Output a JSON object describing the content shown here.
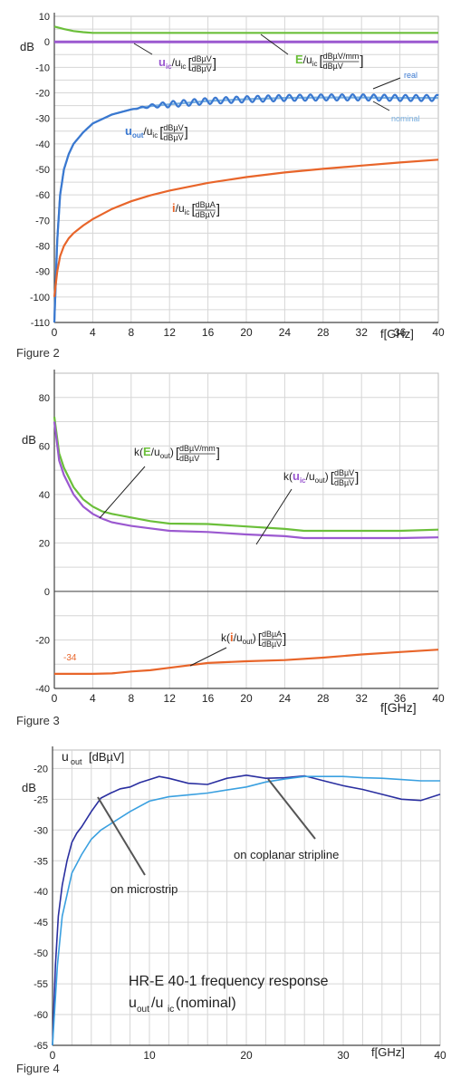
{
  "chart_data": [
    {
      "type": "line",
      "caption": "Figure 2",
      "ylabel": "dB",
      "xlabel": "f[GHz]",
      "xlim": [
        0,
        40
      ],
      "ylim": [
        -110,
        10
      ],
      "xticks": [
        0,
        4,
        8,
        12,
        16,
        20,
        24,
        28,
        32,
        36,
        40
      ],
      "yticks": [
        10,
        0,
        -10,
        -20,
        -30,
        -40,
        -50,
        -60,
        -70,
        -80,
        -90,
        -100,
        -110
      ],
      "grid": true,
      "series": [
        {
          "key": "E",
          "color": "#6bbf3a",
          "x": [
            0,
            0.5,
            1,
            2,
            3,
            4,
            8,
            12,
            20,
            30,
            40
          ],
          "y": [
            6,
            5.5,
            5,
            4.2,
            3.8,
            3.5,
            3.5,
            3.5,
            3.5,
            3.5,
            3.5
          ]
        },
        {
          "key": "uic",
          "color": "#9b59d0",
          "x": [
            0,
            40
          ],
          "y": [
            0,
            0
          ]
        },
        {
          "key": "uout_nominal",
          "color": "#7ab0e0",
          "x": [
            0,
            0.3,
            0.6,
            1,
            1.5,
            2,
            3,
            4,
            6,
            8,
            10,
            12,
            16,
            20,
            24,
            28,
            32,
            36,
            40
          ],
          "y": [
            -110,
            -78,
            -60,
            -50,
            -44,
            -40,
            -35.5,
            -32,
            -28.5,
            -26.5,
            -25.2,
            -24.5,
            -23.2,
            -22.5,
            -22,
            -21.8,
            -21.8,
            -22,
            -22
          ]
        },
        {
          "key": "uout_real",
          "color": "#3a78d0",
          "x": [
            0,
            0.3,
            0.6,
            1,
            1.5,
            2,
            3,
            4,
            6,
            8,
            10,
            12,
            16,
            20,
            24,
            28,
            32,
            36,
            40
          ],
          "y": [
            -110,
            -78,
            -60,
            -50,
            -44,
            -40,
            -35.5,
            -32,
            -28.5,
            -26.5,
            -25.2,
            -24.5,
            -23.2,
            -22.5,
            -22,
            -21.8,
            -21.8,
            -22,
            -22
          ],
          "ripple": 1.2
        },
        {
          "key": "i",
          "color": "#e8652a",
          "x": [
            0,
            0.3,
            0.6,
            1,
            1.5,
            2,
            3,
            4,
            6,
            8,
            10,
            12,
            16,
            20,
            24,
            28,
            32,
            36,
            40
          ],
          "y": [
            -100,
            -90,
            -84,
            -80,
            -77,
            -75,
            -72,
            -69.5,
            -65.5,
            -62.5,
            -60.2,
            -58.3,
            -55.3,
            -53,
            -51.2,
            -49.8,
            -48.5,
            -47.3,
            -46.2
          ]
        }
      ],
      "annotations": {
        "uic": {
          "main": "u",
          "sub": "ic",
          "den": "u",
          "densub": "ic",
          "frac_num": "dBµV",
          "frac_den": "dBµV"
        },
        "E": {
          "main": "E",
          "den": "u",
          "densub": "ic",
          "frac_num": "dBµV/mm",
          "frac_den": "dBµV"
        },
        "uout": {
          "main": "u",
          "sub": "out",
          "den": "u",
          "densub": "ic",
          "frac_num": "dBµV",
          "frac_den": "dBµV"
        },
        "i": {
          "main": "i",
          "den": "u",
          "densub": "ic",
          "frac_num": "dBµA",
          "frac_den": "dBµV"
        },
        "real": "real",
        "nominal": "nominal"
      }
    },
    {
      "type": "line",
      "caption": "Figure 3",
      "ylabel": "dB",
      "xlabel": "f[GHz]",
      "xlim": [
        0,
        40
      ],
      "ylim": [
        -40,
        90
      ],
      "xticks": [
        0,
        4,
        8,
        12,
        16,
        20,
        24,
        28,
        32,
        36,
        40
      ],
      "yticks": [
        80,
        60,
        40,
        20,
        0,
        -20,
        -40
      ],
      "grid": true,
      "series": [
        {
          "key": "kE",
          "color": "#6bbf3a",
          "x": [
            0,
            0.5,
            1,
            2,
            3,
            4,
            5,
            6,
            8,
            10,
            12,
            16,
            20,
            24,
            26,
            28,
            32,
            36,
            40
          ],
          "y": [
            72,
            57,
            51,
            43,
            38,
            35,
            33,
            32,
            30.5,
            29,
            28,
            27.8,
            26.8,
            25.8,
            25,
            25,
            25,
            25,
            25.5
          ]
        },
        {
          "key": "kuic",
          "color": "#9b59d0",
          "x": [
            0,
            0.5,
            1,
            2,
            3,
            4,
            5,
            6,
            8,
            10,
            12,
            16,
            20,
            24,
            26,
            28,
            32,
            36,
            40
          ],
          "y": [
            70,
            54,
            48,
            40,
            35,
            32,
            30,
            28.5,
            27,
            26,
            25,
            24.5,
            23.5,
            22.8,
            22,
            22,
            22,
            22,
            22.3
          ]
        },
        {
          "key": "ki",
          "color": "#e8652a",
          "x": [
            0,
            2,
            4,
            6,
            8,
            10,
            12,
            16,
            20,
            24,
            28,
            32,
            36,
            40
          ],
          "y": [
            -34,
            -34,
            -34,
            -33.8,
            -33,
            -32.5,
            -31.5,
            -29.5,
            -28.8,
            -28.3,
            -27.3,
            -26,
            -25,
            -24
          ]
        }
      ],
      "annotations": {
        "kE": {
          "pre": "k(",
          "main": "E",
          "den": "u",
          "densub": "out",
          "frac_num": "dBµV/mm",
          "frac_den": "dBµV"
        },
        "kuic": {
          "pre": "k(",
          "main": "u",
          "sub": "ic",
          "den": "u",
          "densub": "out",
          "frac_num": "dBµV",
          "frac_den": "dBµV"
        },
        "ki": {
          "pre": "k(",
          "main": "i",
          "den": "u",
          "densub": "out",
          "frac_num": "dBµA",
          "frac_den": "dBµV"
        },
        "value_label": "-34"
      }
    },
    {
      "type": "line",
      "caption": "Figure 4",
      "ylabel": "dB",
      "xlabel": "f[GHz]",
      "xlim": [
        0,
        40
      ],
      "ylim": [
        -65,
        -17
      ],
      "xticks": [
        0,
        10,
        20,
        30,
        40
      ],
      "yticks": [
        -20,
        -25,
        -30,
        -35,
        -40,
        -45,
        -50,
        -55,
        -60,
        -65
      ],
      "grid": true,
      "series": [
        {
          "key": "microstrip",
          "color": "#2a2fa0",
          "x": [
            0,
            0.3,
            0.6,
            1,
            1.5,
            2,
            2.5,
            3,
            4,
            5,
            6,
            7,
            8,
            9,
            10,
            11,
            12,
            14,
            16,
            18,
            20,
            22,
            24,
            26,
            28,
            30,
            32,
            34,
            36,
            38,
            40
          ],
          "y": [
            -65,
            -52,
            -44,
            -39,
            -35,
            -32,
            -30.5,
            -29.5,
            -27,
            -24.8,
            -24,
            -23.3,
            -23,
            -22.3,
            -21.8,
            -21.3,
            -21.6,
            -22.4,
            -22.6,
            -21.6,
            -21.1,
            -21.6,
            -21.5,
            -21.2,
            -22,
            -22.8,
            -23.4,
            -24.2,
            -25,
            -25.2,
            -24.2
          ]
        },
        {
          "key": "coplanar",
          "color": "#3aa0e0",
          "x": [
            0,
            0.5,
            1,
            2,
            3,
            4,
            5,
            6,
            8,
            10,
            12,
            14,
            16,
            18,
            20,
            22,
            24,
            26,
            28,
            30,
            32,
            34,
            36,
            38,
            40
          ],
          "y": [
            -65,
            -52,
            -44,
            -37,
            -34,
            -31.5,
            -30,
            -29,
            -27,
            -25.3,
            -24.6,
            -24.3,
            -24,
            -23.5,
            -23,
            -22.2,
            -21.7,
            -21.3,
            -21.3,
            -21.3,
            -21.5,
            -21.6,
            -21.8,
            -22,
            -22
          ]
        }
      ],
      "annotations": {
        "yunit": {
          "main": "u",
          "sub": "out",
          "rest": "[dBµV]"
        },
        "microstrip": "on microstrip",
        "coplanar": "on coplanar stripline",
        "title1": "HR-E 40-1 frequency response",
        "title2": {
          "main": "u",
          "sub": "out",
          "mid": "/u",
          "sub2": "ic",
          "rest": " (nominal)"
        }
      }
    }
  ]
}
